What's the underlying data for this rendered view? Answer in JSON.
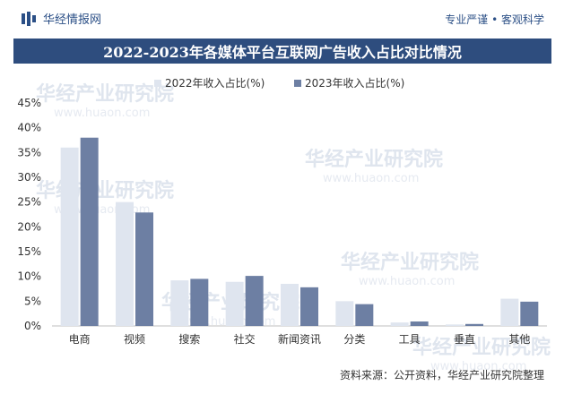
{
  "brand": {
    "name": "华经情报网",
    "slogan": "专业严谨 • 客观科学"
  },
  "title": "2022-2023年各媒体平台互联网广告收入占比对比情况",
  "source": "资料来源：公开资料，华经产业研究院整理",
  "watermark": {
    "text": "华经产业研究院",
    "url": "www.huaon.com"
  },
  "colors": {
    "title_band": "#2e4d7e",
    "series_2022": "#dfe5ef",
    "series_2023": "#6d7fa3"
  },
  "chart_data": {
    "type": "bar",
    "categories": [
      "电商",
      "视频",
      "搜索",
      "社交",
      "新闻资讯",
      "分类",
      "工具",
      "垂直",
      "其他"
    ],
    "series": [
      {
        "name": "2022年收入占比(%)",
        "values": [
          36.0,
          25.0,
          9.2,
          8.9,
          8.5,
          5.0,
          0.7,
          0.3,
          5.5
        ]
      },
      {
        "name": "2023年收入占比(%)",
        "values": [
          38.0,
          22.9,
          9.5,
          10.1,
          7.8,
          4.4,
          0.9,
          0.4,
          4.9
        ]
      }
    ],
    "yticks": [
      "0%",
      "5%",
      "10%",
      "15%",
      "20%",
      "25%",
      "30%",
      "35%",
      "40%",
      "45%"
    ],
    "ylim": [
      0,
      45
    ],
    "legend": "top-center",
    "grid": false
  }
}
